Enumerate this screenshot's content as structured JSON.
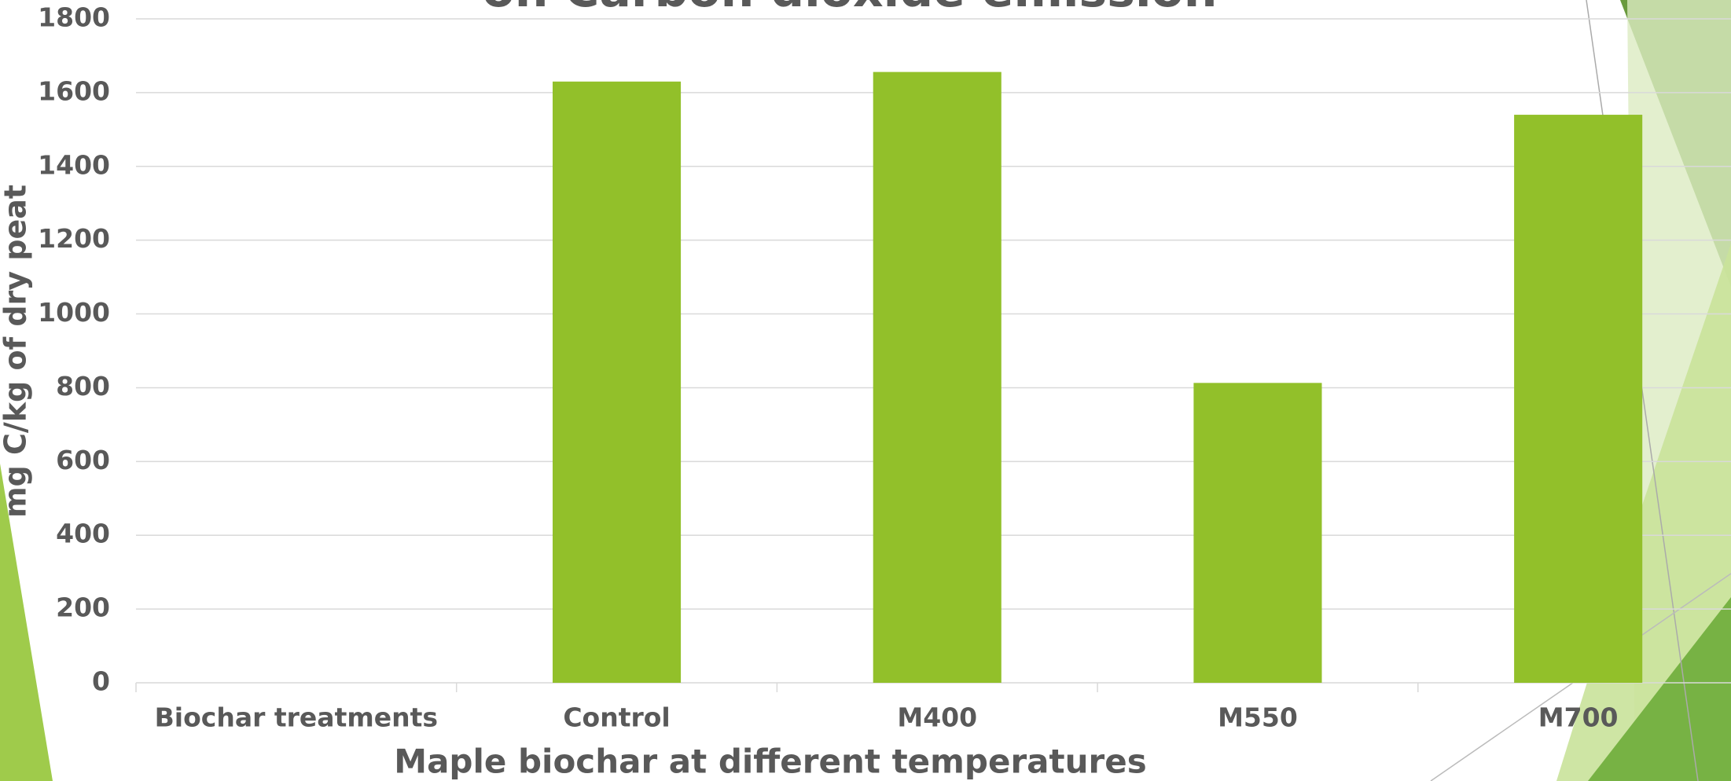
{
  "chart_data": {
    "type": "bar",
    "title": "on Carbon dioxide  emission",
    "x_label": "Maple biochar at different temperatures",
    "y_label": "mg C/kg of dry peat",
    "categories": [
      "Biochar treatments",
      "Control",
      "M400",
      "M550",
      "M700"
    ],
    "values": [
      null,
      1630,
      1656,
      813,
      1540
    ],
    "color": "#92c02a",
    "ylim": [
      0,
      1800
    ],
    "yticks": [
      0,
      200,
      400,
      600,
      800,
      1000,
      1200,
      1400,
      1600,
      1800
    ],
    "grid": true
  }
}
